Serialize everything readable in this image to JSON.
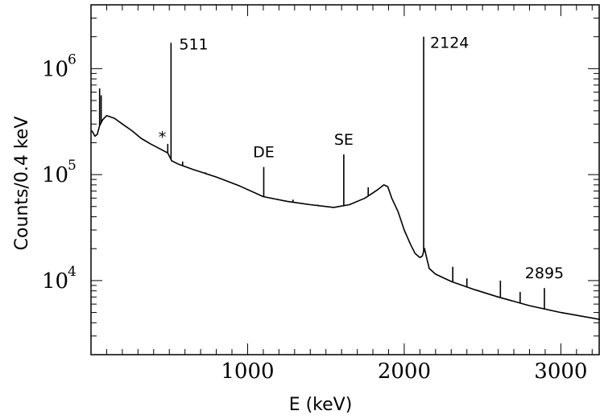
{
  "chart_data": {
    "type": "line",
    "title": "",
    "xlabel": "E (keV)",
    "ylabel": "Counts/0.4 keV",
    "xlim": [
      0,
      3250
    ],
    "ylim": [
      2000,
      4000000
    ],
    "yscale": "log",
    "grid": false,
    "x_ticks": [
      {
        "value": 1000,
        "label": "1000"
      },
      {
        "value": 2000,
        "label": "2000"
      },
      {
        "value": 3000,
        "label": "3000"
      }
    ],
    "y_ticks": [
      {
        "value": 10000,
        "base": "10",
        "exp": "4"
      },
      {
        "value": 100000,
        "base": "10",
        "exp": "5"
      },
      {
        "value": 1000000,
        "base": "10",
        "exp": "6"
      }
    ],
    "continuum": {
      "x": [
        0,
        25,
        40,
        55,
        75,
        100,
        150,
        200,
        260,
        320,
        380,
        440,
        490,
        515,
        560,
        650,
        800,
        950,
        1100,
        1250,
        1400,
        1550,
        1650,
        1750,
        1830,
        1870,
        1895,
        1920,
        1960,
        2000,
        2040,
        2070,
        2100,
        2115,
        2130,
        2145,
        2160,
        2200,
        2300,
        2450,
        2600,
        2800,
        3000,
        3250
      ],
      "y": [
        260000,
        230000,
        240000,
        290000,
        330000,
        360000,
        340000,
        300000,
        260000,
        220000,
        195000,
        175000,
        160000,
        135000,
        125000,
        112000,
        95000,
        78000,
        62000,
        56000,
        52000,
        49000,
        52000,
        60000,
        72000,
        80000,
        77000,
        60000,
        45000,
        30000,
        22000,
        18000,
        16500,
        17000,
        20000,
        16000,
        13000,
        11500,
        9800,
        8200,
        7000,
        5800,
        5000,
        4300
      ]
    },
    "peaks": [
      {
        "x": 55,
        "y": 650000
      },
      {
        "x": 65,
        "y": 560000
      },
      {
        "x": 490,
        "y": 195000
      },
      {
        "x": 511,
        "y": 1750000
      },
      {
        "x": 585,
        "y": 133000
      },
      {
        "x": 730,
        "y": 105000
      },
      {
        "x": 1103,
        "y": 118000
      },
      {
        "x": 1290,
        "y": 58000
      },
      {
        "x": 1450,
        "y": 52000
      },
      {
        "x": 1614,
        "y": 155000
      },
      {
        "x": 1770,
        "y": 76000
      },
      {
        "x": 2124,
        "y": 2000000
      },
      {
        "x": 2310,
        "y": 13500
      },
      {
        "x": 2400,
        "y": 10500
      },
      {
        "x": 2614,
        "y": 10000
      },
      {
        "x": 2740,
        "y": 7800
      },
      {
        "x": 2895,
        "y": 8500
      }
    ],
    "annotations": [
      {
        "text": "511",
        "x": 511,
        "y": 1750000
      },
      {
        "text": "*",
        "x": 490,
        "y": 195000
      },
      {
        "text": "DE",
        "x": 1103,
        "y": 118000
      },
      {
        "text": "SE",
        "x": 1614,
        "y": 155000
      },
      {
        "text": "2124",
        "x": 2124,
        "y": 2000000
      },
      {
        "text": "2895",
        "x": 2895,
        "y": 8500
      }
    ]
  }
}
